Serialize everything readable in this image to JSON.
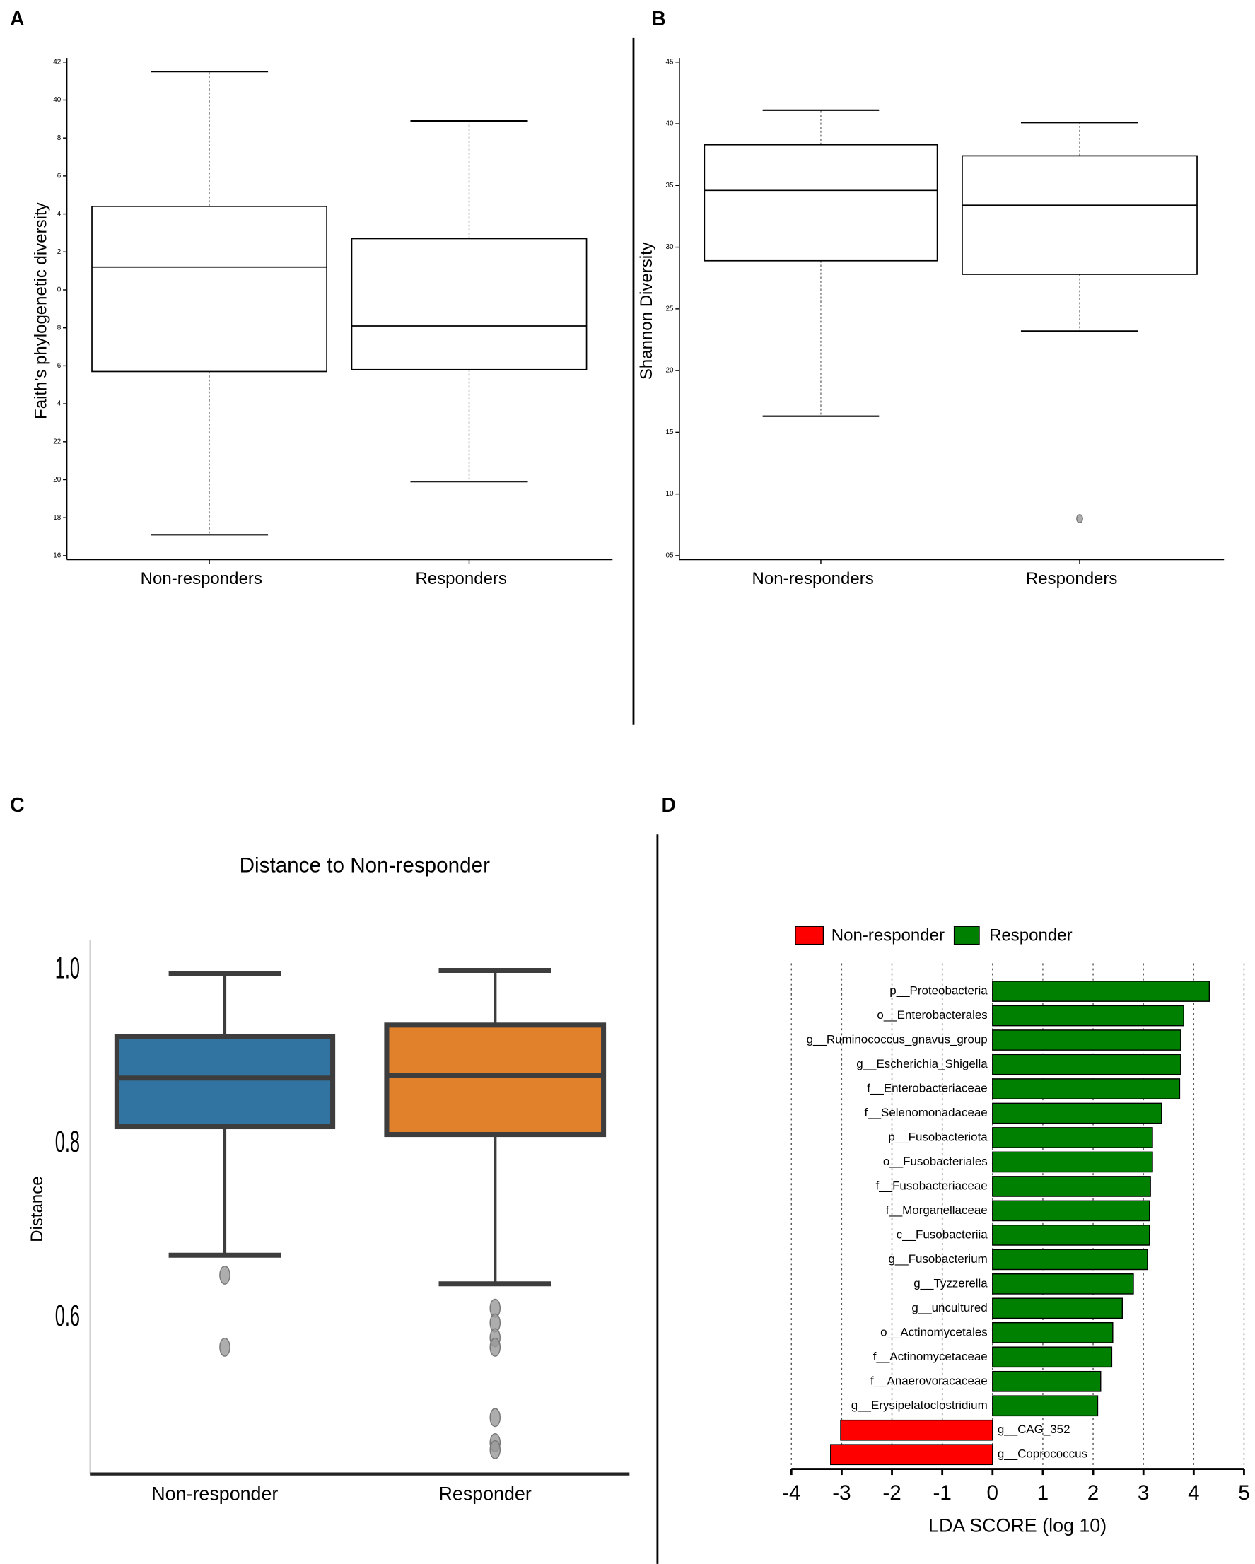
{
  "chart_data": [
    {
      "type": "box",
      "panel": "A",
      "ylabel": "Faith’s phylogenetic diversity",
      "categories": [
        "Non-responders",
        "Responders"
      ],
      "colors": [
        "#ffffff",
        "#ffffff"
      ],
      "boxes": [
        {
          "whislo": 17.1,
          "q1": 25.7,
          "med": 31.2,
          "q3": 34.4,
          "whishi": 41.5
        },
        {
          "whislo": 19.9,
          "q1": 25.8,
          "med": 28.1,
          "q3": 32.7,
          "whishi": 38.9
        }
      ],
      "ylim": [
        16,
        42
      ],
      "yticks": [
        42,
        40,
        {
          "value": 38,
          "label": "8"
        },
        {
          "value": 36,
          "label": "6"
        },
        {
          "value": 34,
          "label": "4"
        },
        {
          "value": 32,
          "label": "2"
        },
        {
          "value": 30,
          "label": "0"
        },
        {
          "value": 28,
          "label": "8"
        },
        {
          "value": 26,
          "label": "6"
        },
        {
          "value": 24,
          "label": "4"
        },
        22,
        20,
        18,
        16
      ]
    },
    {
      "type": "box",
      "panel": "B",
      "ylabel": "Shannon Diversity",
      "categories": [
        "Non-responders",
        "Responders"
      ],
      "colors": [
        "#ffffff",
        "#ffffff"
      ],
      "boxes": [
        {
          "whislo": 1.63,
          "q1": 2.89,
          "med": 3.46,
          "q3": 3.83,
          "whishi": 4.11
        },
        {
          "whislo": 2.32,
          "q1": 2.78,
          "med": 3.34,
          "q3": 3.74,
          "whishi": 4.01,
          "fliers": [
            0.8
          ]
        }
      ],
      "ylim": [
        0.5,
        4.5
      ],
      "yticks": [
        {
          "value": 4.5,
          "label": "45"
        },
        {
          "value": 4.0,
          "label": "40"
        },
        {
          "value": 3.5,
          "label": "35"
        },
        {
          "value": 3.0,
          "label": "30"
        },
        {
          "value": 2.5,
          "label": "25"
        },
        {
          "value": 2.0,
          "label": "20"
        },
        {
          "value": 1.5,
          "label": "15"
        },
        {
          "value": 1.0,
          "label": "10"
        },
        {
          "value": 0.5,
          "label": "05"
        }
      ]
    },
    {
      "type": "box",
      "panel": "C",
      "title": "Distance to Non-responder",
      "ylabel": "Distance",
      "categories": [
        "Non-responder",
        "Responder"
      ],
      "colors": [
        "#3274a1",
        "#e1812c"
      ],
      "boxes": [
        {
          "whislo": 0.672,
          "q1": 0.82,
          "med": 0.876,
          "q3": 0.924,
          "whishi": 0.996,
          "fliers": [
            0.649,
            0.566
          ]
        },
        {
          "whislo": 0.639,
          "q1": 0.811,
          "med": 0.879,
          "q3": 0.937,
          "whishi": 1.0,
          "fliers": [
            0.611,
            0.594,
            0.577,
            0.566,
            0.485,
            0.456,
            0.448
          ]
        }
      ],
      "ylim": [
        0.42,
        1.03
      ],
      "yticks": [
        {
          "value": 1.0,
          "label": "1.0"
        },
        0.8,
        0.6
      ]
    },
    {
      "type": "hbar",
      "panel": "D",
      "xlabel": "LDA SCORE (log 10)",
      "categories": [
        "p__Proteobacteria",
        "o__Enterobacterales",
        "g__Ruminococcus_gnavus_group",
        "g__Escherichia_Shigella",
        "f__Enterobacteriaceae",
        "f__Selenomonadaceae",
        "p__Fusobacteriota",
        "o__Fusobacteriales",
        "f__Fusobacteriaceae",
        "f__Morganellaceae",
        "c__Fusobacteriia",
        "g__Fusobacterium",
        "g__Tyzzerella",
        "g__uncultured",
        "o__Actinomycetales",
        "f__Actinomycetaceae",
        "f__Anaerovoracaceae",
        "g__Erysipelatoclostridium",
        "g__CAG_352",
        "g__Coprococcus"
      ],
      "series": [
        {
          "name": "Non-responder",
          "color": "#ff0000",
          "values": [
            null,
            null,
            null,
            null,
            null,
            null,
            null,
            null,
            null,
            null,
            null,
            null,
            null,
            null,
            null,
            null,
            null,
            null,
            -3.02,
            -3.22
          ]
        },
        {
          "name": "Responder",
          "color": "#008000",
          "values": [
            4.31,
            3.8,
            3.74,
            3.74,
            3.72,
            3.36,
            3.18,
            3.18,
            3.14,
            3.12,
            3.12,
            3.08,
            2.8,
            2.58,
            2.39,
            2.37,
            2.15,
            2.09,
            null,
            null
          ]
        }
      ],
      "xlim": [
        -4,
        5
      ],
      "xticks": [
        -4,
        -3,
        -2,
        -1,
        0,
        1,
        2,
        3,
        4,
        5
      ],
      "grid": true
    }
  ]
}
